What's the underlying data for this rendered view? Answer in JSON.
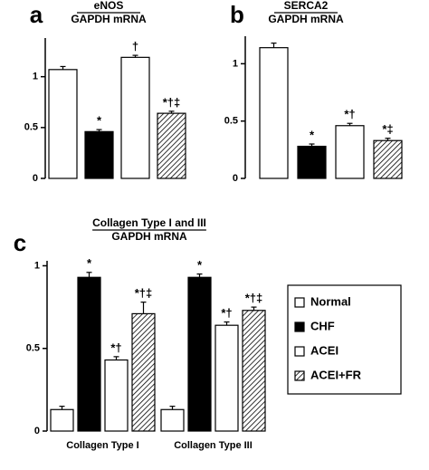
{
  "chart_data": [
    {
      "type": "bar",
      "panel_label": "a",
      "title": "eNOS",
      "subtitle": "GAPDH mRNA",
      "categories": [
        null
      ],
      "series": [
        {
          "color": "#ffffff",
          "values": [
            1.07
          ],
          "errors": [
            0.03
          ],
          "annotations": [
            null
          ]
        },
        {
          "color": "#000000",
          "values": [
            0.46
          ],
          "errors": [
            0.02
          ],
          "annotations": [
            "*"
          ]
        },
        {
          "color": "#ffffff",
          "values": [
            1.19
          ],
          "errors": [
            0.02
          ],
          "annotations": [
            "†"
          ]
        },
        {
          "color": "#ffffff",
          "pattern": "hatch",
          "values": [
            0.64
          ],
          "errors": [
            0.02
          ],
          "annotations": [
            "*†‡"
          ]
        }
      ],
      "ylim": [
        0,
        1.38
      ],
      "yticks": [
        0,
        0.5,
        1
      ]
    },
    {
      "type": "bar",
      "panel_label": "b",
      "title": "SERCA2",
      "subtitle": "GAPDH mRNA",
      "categories": [
        null
      ],
      "series": [
        {
          "color": "#ffffff",
          "values": [
            1.14
          ],
          "errors": [
            0.04
          ],
          "annotations": [
            null
          ]
        },
        {
          "color": "#000000",
          "values": [
            0.28
          ],
          "errors": [
            0.02
          ],
          "annotations": [
            "*"
          ]
        },
        {
          "color": "#ffffff",
          "values": [
            0.46
          ],
          "errors": [
            0.02
          ],
          "annotations": [
            "*†"
          ]
        },
        {
          "color": "#ffffff",
          "pattern": "hatch",
          "values": [
            0.33
          ],
          "errors": [
            0.02
          ],
          "annotations": [
            "*‡"
          ]
        }
      ],
      "ylim": [
        0,
        1.24
      ],
      "yticks": [
        0,
        0.5,
        1
      ]
    },
    {
      "type": "bar",
      "panel_label": "c",
      "title": "Collagen Type I and III",
      "subtitle": "GAPDH mRNA",
      "categories": [
        "Collagen Type I",
        "Collagen Type III"
      ],
      "series": [
        {
          "name": "Normal",
          "color": "#ffffff",
          "values": [
            0.13,
            0.13
          ],
          "errors": [
            0.02,
            0.02
          ],
          "annotations": [
            null,
            null
          ]
        },
        {
          "name": "CHF",
          "color": "#000000",
          "values": [
            0.93,
            0.93
          ],
          "errors": [
            0.03,
            0.02
          ],
          "annotations": [
            "*",
            "*"
          ]
        },
        {
          "name": "ACEI",
          "color": "#ffffff",
          "values": [
            0.43,
            0.64
          ],
          "errors": [
            0.02,
            0.02
          ],
          "annotations": [
            "*†",
            "*†"
          ]
        },
        {
          "name": "ACEI+FR",
          "color": "#ffffff",
          "pattern": "hatch",
          "values": [
            0.71,
            0.73
          ],
          "errors": [
            0.07,
            0.02
          ],
          "annotations": [
            "*†‡",
            "*†‡"
          ]
        }
      ],
      "ylim": [
        0,
        1.03
      ],
      "yticks": [
        0,
        0.5,
        1
      ],
      "legend": "right"
    }
  ]
}
